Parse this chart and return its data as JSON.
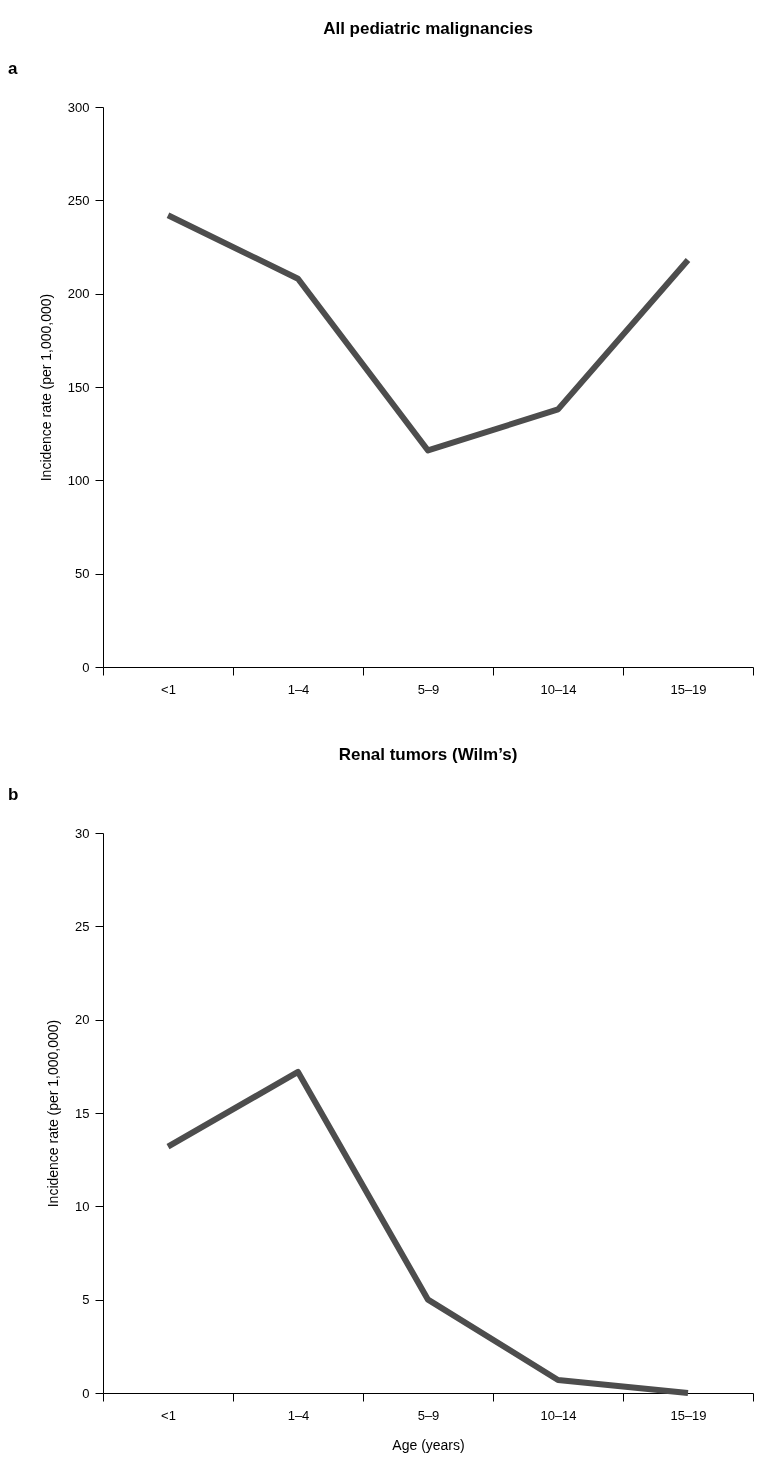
{
  "chart_data": [
    {
      "type": "line",
      "title": "All pediatric malignancies",
      "ylabel": "Incidence rate (per 1,000,000)",
      "annotations": [
        "a"
      ],
      "categories": [
        "<1",
        "1–4",
        "5–9",
        "10–14",
        "15–19"
      ],
      "series": [
        {
          "color": "#4d4d4d",
          "values": [
            242,
            208,
            116,
            138,
            218
          ]
        }
      ],
      "ylim": [
        0,
        300
      ],
      "yticks": [
        0,
        50,
        100,
        150,
        200,
        250,
        300
      ],
      "grid": false,
      "line_style": "solid"
    },
    {
      "type": "line",
      "title": "Renal tumors (Wilm’s)",
      "xlabel": "Age (years)",
      "ylabel": "Incidence rate (per 1,000,000)",
      "annotations": [
        "b"
      ],
      "categories": [
        "<1",
        "1–4",
        "5–9",
        "10–14",
        "15–19"
      ],
      "series": [
        {
          "color": "#4d4d4d",
          "values": [
            13.2,
            17.2,
            5.0,
            0.7,
            0
          ]
        }
      ],
      "ylim": [
        0,
        30
      ],
      "yticks": [
        0,
        5,
        10,
        15,
        20,
        25,
        30
      ],
      "grid": false,
      "line_style": "solid"
    }
  ]
}
